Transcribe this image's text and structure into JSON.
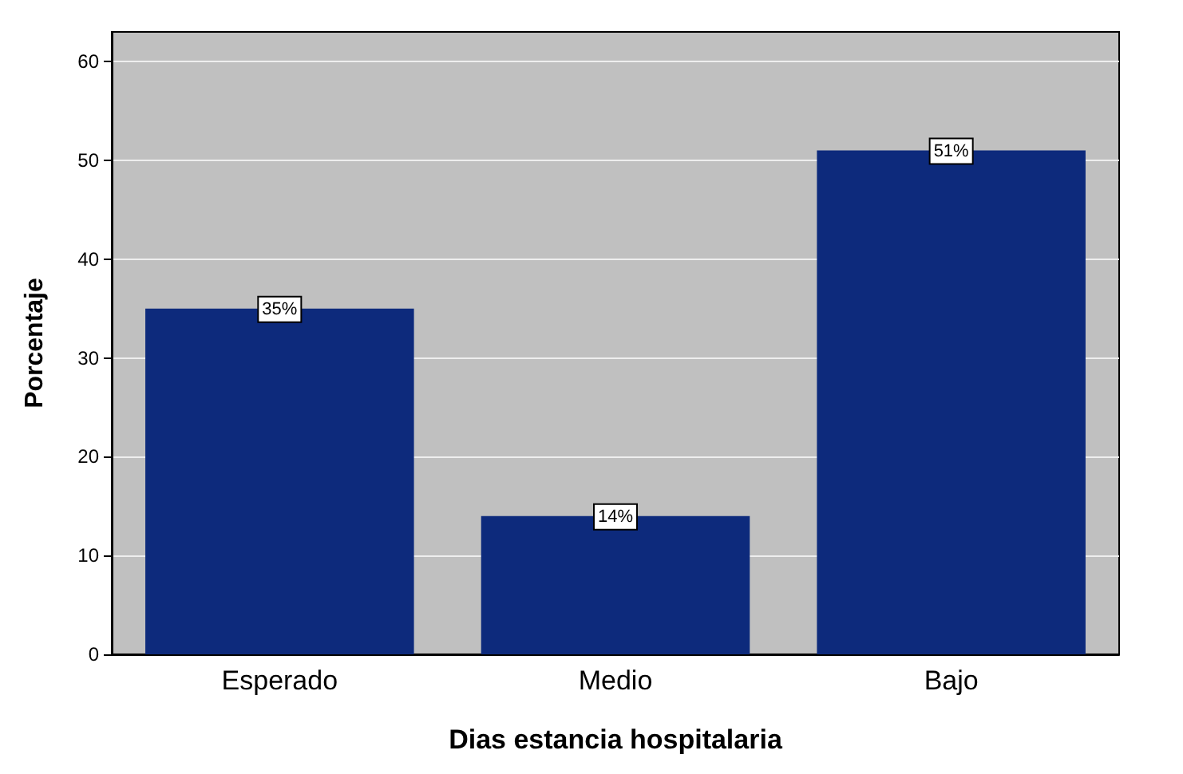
{
  "chart_data": {
    "type": "bar",
    "xlabel": "Dias estancia hospitalaria",
    "ylabel": "Porcentaje",
    "categories": [
      "Esperado",
      "Medio",
      "Bajo"
    ],
    "values": [
      35,
      14,
      51
    ],
    "color": "#0d2a7c",
    "value_labels": [
      "35%",
      "14%",
      "51%"
    ],
    "ylim": [
      0,
      63
    ],
    "yticks": [
      0,
      10,
      20,
      30,
      40,
      50,
      60
    ],
    "grid": "y"
  }
}
